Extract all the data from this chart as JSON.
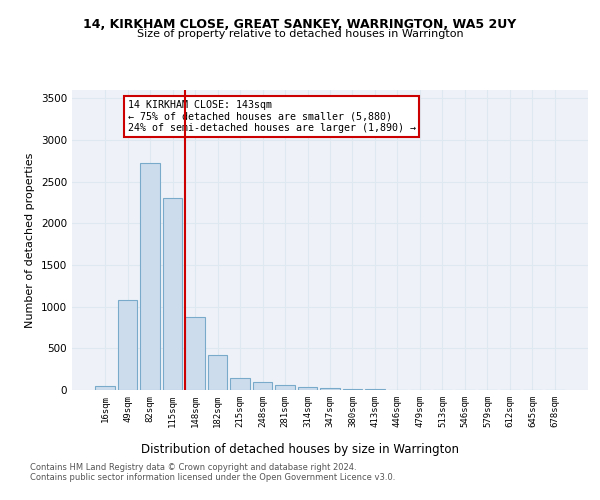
{
  "title1": "14, KIRKHAM CLOSE, GREAT SANKEY, WARRINGTON, WA5 2UY",
  "title2": "Size of property relative to detached houses in Warrington",
  "xlabel": "Distribution of detached houses by size in Warrington",
  "ylabel": "Number of detached properties",
  "bar_labels": [
    "16sqm",
    "49sqm",
    "82sqm",
    "115sqm",
    "148sqm",
    "182sqm",
    "215sqm",
    "248sqm",
    "281sqm",
    "314sqm",
    "347sqm",
    "380sqm",
    "413sqm",
    "446sqm",
    "479sqm",
    "513sqm",
    "546sqm",
    "579sqm",
    "612sqm",
    "645sqm",
    "678sqm"
  ],
  "bar_values": [
    50,
    1080,
    2720,
    2300,
    880,
    420,
    150,
    100,
    60,
    40,
    20,
    10,
    8,
    5,
    4,
    3,
    2,
    2,
    1,
    1,
    1
  ],
  "bar_color": "#ccdcec",
  "bar_edge_color": "#7aaaca",
  "vline_color": "#cc0000",
  "annotation_text": "14 KIRKHAM CLOSE: 143sqm\n← 75% of detached houses are smaller (5,880)\n24% of semi-detached houses are larger (1,890) →",
  "annotation_box_color": "#ffffff",
  "annotation_box_edge_color": "#cc0000",
  "grid_color": "#dde8f0",
  "bg_color": "#eef2f8",
  "ylim": [
    0,
    3600
  ],
  "yticks": [
    0,
    500,
    1000,
    1500,
    2000,
    2500,
    3000,
    3500
  ],
  "footer1": "Contains HM Land Registry data © Crown copyright and database right 2024.",
  "footer2": "Contains public sector information licensed under the Open Government Licence v3.0."
}
